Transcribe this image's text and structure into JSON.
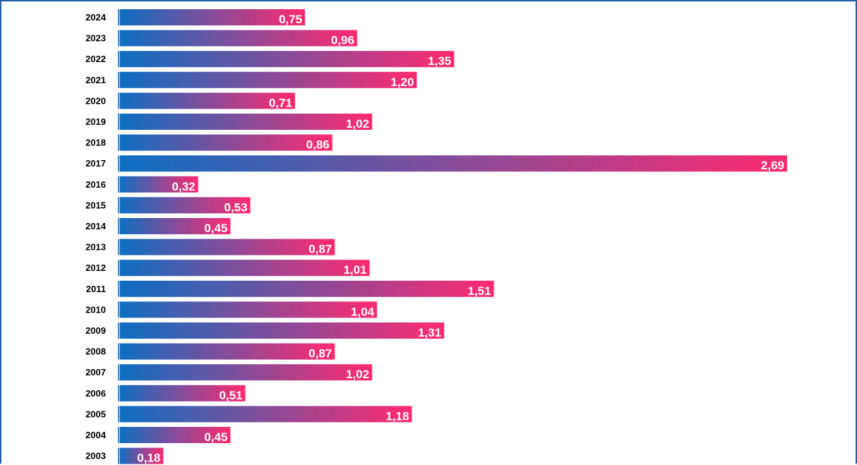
{
  "chart_data": {
    "type": "bar",
    "orientation": "horizontal",
    "categories": [
      "2024",
      "2023",
      "2022",
      "2021",
      "2020",
      "2019",
      "2018",
      "2017",
      "2016",
      "2015",
      "2014",
      "2013",
      "2012",
      "2011",
      "2010",
      "2009",
      "2008",
      "2007",
      "2006",
      "2005",
      "2004",
      "2003"
    ],
    "values": [
      0.75,
      0.96,
      1.35,
      1.2,
      0.71,
      1.02,
      0.86,
      2.69,
      0.32,
      0.53,
      0.45,
      0.87,
      1.01,
      1.51,
      1.04,
      1.31,
      0.87,
      1.02,
      0.51,
      1.18,
      0.45,
      0.18
    ],
    "value_labels": [
      "0,75",
      "0,96",
      "1,35",
      "1,20",
      "0,71",
      "1,02",
      "0,86",
      "2,69",
      "0,32",
      "0,53",
      "0,45",
      "0,87",
      "1,01",
      "1,51",
      "1,04",
      "1,31",
      "0,87",
      "1,02",
      "0,51",
      "1,18",
      "0,45",
      "0,18"
    ],
    "title": "",
    "xlabel": "",
    "ylabel": "",
    "xlim": [
      0,
      2.69
    ],
    "grid": false,
    "colors": {
      "gradient_start": "#0d6ec2",
      "gradient_end": "#ff2a70",
      "frame": "#1f5fa8",
      "label_text": "#ffffff"
    }
  }
}
